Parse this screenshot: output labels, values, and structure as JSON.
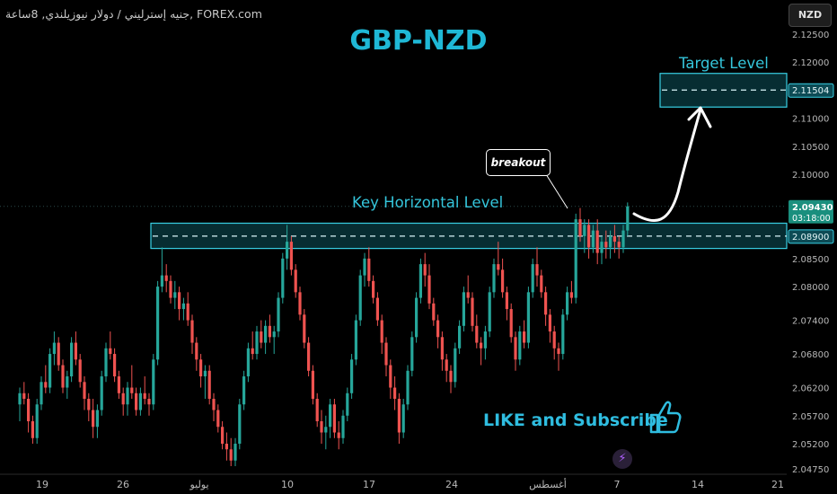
{
  "header": {
    "source": "جنيه إسترليني / دولار نيوزيلندي, 8ساعة, FOREX.com",
    "title": "GBP-NZD",
    "symbol_button": "NZD"
  },
  "annotations": {
    "breakout": "breakout",
    "key_level": "Key Horizontal Level",
    "target_level": "Target Level",
    "like": "LIKE and Subscribe"
  },
  "colors": {
    "background": "#000000",
    "bull": "#26a69a",
    "bear": "#ef5350",
    "zone": "#1aa0b4",
    "accent": "#1fb8d6"
  },
  "icons": [
    "thumbs-up-icon",
    "lightning-icon"
  ],
  "chart_data": {
    "type": "candlestick",
    "y_axis_ticks": [
      "2.12500",
      "2.12000",
      "2.11000",
      "2.10500",
      "2.10000",
      "2.08500",
      "2.08000",
      "2.07400",
      "2.06800",
      "2.06200",
      "2.05700",
      "2.05200",
      "2.04750"
    ],
    "x_axis_ticks": [
      "19",
      "26",
      "يوليو",
      "10",
      "17",
      "24",
      "أغسطس",
      "7",
      "14",
      "21"
    ],
    "ylim": [
      2.0475,
      2.1275
    ],
    "price_labels": [
      {
        "value": "2.11504",
        "style": "zone"
      },
      {
        "value": "2.09430",
        "sub": "03:18:00",
        "style": "bull"
      },
      {
        "value": "2.08900",
        "style": "zone"
      }
    ],
    "zones": [
      {
        "name": "Key Horizontal Level",
        "top": 2.0913,
        "bottom": 2.0868,
        "mid": 2.089
      },
      {
        "name": "Target Level",
        "top": 2.118,
        "bottom": 2.112,
        "mid": 2.11504
      }
    ],
    "current_price": 2.0943,
    "candles": [
      [
        2.059,
        2.062,
        2.056,
        2.061
      ],
      [
        2.061,
        2.063,
        2.059,
        2.06
      ],
      [
        2.06,
        2.061,
        2.054,
        2.056
      ],
      [
        2.056,
        2.057,
        2.052,
        2.053
      ],
      [
        2.053,
        2.06,
        2.052,
        2.059
      ],
      [
        2.059,
        2.064,
        2.058,
        2.063
      ],
      [
        2.063,
        2.066,
        2.061,
        2.062
      ],
      [
        2.062,
        2.069,
        2.061,
        2.068
      ],
      [
        2.068,
        2.072,
        2.066,
        2.07
      ],
      [
        2.07,
        2.071,
        2.065,
        2.066
      ],
      [
        2.066,
        2.067,
        2.061,
        2.062
      ],
      [
        2.062,
        2.065,
        2.06,
        2.064
      ],
      [
        2.064,
        2.071,
        2.063,
        2.07
      ],
      [
        2.07,
        2.072,
        2.066,
        2.067
      ],
      [
        2.067,
        2.068,
        2.062,
        2.063
      ],
      [
        2.063,
        2.064,
        2.058,
        2.06
      ],
      [
        2.06,
        2.061,
        2.056,
        2.058
      ],
      [
        2.058,
        2.06,
        2.053,
        2.055
      ],
      [
        2.055,
        2.059,
        2.053,
        2.058
      ],
      [
        2.058,
        2.065,
        2.057,
        2.064
      ],
      [
        2.064,
        2.07,
        2.063,
        2.069
      ],
      [
        2.069,
        2.072,
        2.067,
        2.068
      ],
      [
        2.068,
        2.069,
        2.063,
        2.064
      ],
      [
        2.064,
        2.065,
        2.06,
        2.061
      ],
      [
        2.061,
        2.062,
        2.057,
        2.059
      ],
      [
        2.059,
        2.063,
        2.057,
        2.062
      ],
      [
        2.062,
        2.066,
        2.06,
        2.061
      ],
      [
        2.061,
        2.062,
        2.057,
        2.058
      ],
      [
        2.058,
        2.062,
        2.057,
        2.061
      ],
      [
        2.061,
        2.064,
        2.059,
        2.06
      ],
      [
        2.06,
        2.061,
        2.057,
        2.059
      ],
      [
        2.059,
        2.068,
        2.058,
        2.067
      ],
      [
        2.067,
        2.081,
        2.066,
        2.08
      ],
      [
        2.08,
        2.087,
        2.079,
        2.082
      ],
      [
        2.082,
        2.084,
        2.079,
        2.081
      ],
      [
        2.081,
        2.082,
        2.077,
        2.078
      ],
      [
        2.078,
        2.081,
        2.076,
        2.079
      ],
      [
        2.079,
        2.08,
        2.074,
        2.076
      ],
      [
        2.076,
        2.078,
        2.074,
        2.077
      ],
      [
        2.077,
        2.079,
        2.073,
        2.074
      ],
      [
        2.074,
        2.075,
        2.068,
        2.07
      ],
      [
        2.07,
        2.071,
        2.065,
        2.067
      ],
      [
        2.067,
        2.068,
        2.062,
        2.064
      ],
      [
        2.064,
        2.066,
        2.06,
        2.065
      ],
      [
        2.065,
        2.066,
        2.059,
        2.06
      ],
      [
        2.06,
        2.061,
        2.056,
        2.058
      ],
      [
        2.058,
        2.059,
        2.054,
        2.055
      ],
      [
        2.055,
        2.056,
        2.051,
        2.052
      ],
      [
        2.052,
        2.054,
        2.049,
        2.051
      ],
      [
        2.051,
        2.053,
        2.048,
        2.049
      ],
      [
        2.049,
        2.053,
        2.048,
        2.052
      ],
      [
        2.052,
        2.06,
        2.051,
        2.059
      ],
      [
        2.059,
        2.065,
        2.058,
        2.064
      ],
      [
        2.064,
        2.07,
        2.063,
        2.069
      ],
      [
        2.069,
        2.072,
        2.067,
        2.068
      ],
      [
        2.068,
        2.073,
        2.067,
        2.072
      ],
      [
        2.072,
        2.074,
        2.069,
        2.07
      ],
      [
        2.07,
        2.074,
        2.068,
        2.073
      ],
      [
        2.073,
        2.075,
        2.07,
        2.071
      ],
      [
        2.071,
        2.073,
        2.068,
        2.072
      ],
      [
        2.072,
        2.079,
        2.071,
        2.078
      ],
      [
        2.078,
        2.086,
        2.077,
        2.085
      ],
      [
        2.085,
        2.091,
        2.083,
        2.088
      ],
      [
        2.088,
        2.089,
        2.082,
        2.083
      ],
      [
        2.083,
        2.084,
        2.078,
        2.079
      ],
      [
        2.079,
        2.08,
        2.074,
        2.075
      ],
      [
        2.075,
        2.076,
        2.069,
        2.07
      ],
      [
        2.07,
        2.071,
        2.064,
        2.065
      ],
      [
        2.065,
        2.066,
        2.059,
        2.06
      ],
      [
        2.06,
        2.061,
        2.055,
        2.056
      ],
      [
        2.056,
        2.058,
        2.052,
        2.054
      ],
      [
        2.054,
        2.057,
        2.051,
        2.055
      ],
      [
        2.055,
        2.06,
        2.053,
        2.059
      ],
      [
        2.059,
        2.06,
        2.053,
        2.054
      ],
      [
        2.054,
        2.056,
        2.051,
        2.053
      ],
      [
        2.053,
        2.058,
        2.052,
        2.057
      ],
      [
        2.057,
        2.062,
        2.056,
        2.061
      ],
      [
        2.061,
        2.068,
        2.06,
        2.067
      ],
      [
        2.067,
        2.075,
        2.066,
        2.074
      ],
      [
        2.074,
        2.083,
        2.073,
        2.082
      ],
      [
        2.082,
        2.086,
        2.08,
        2.085
      ],
      [
        2.085,
        2.087,
        2.08,
        2.081
      ],
      [
        2.081,
        2.082,
        2.077,
        2.078
      ],
      [
        2.078,
        2.079,
        2.073,
        2.074
      ],
      [
        2.074,
        2.075,
        2.068,
        2.07
      ],
      [
        2.07,
        2.071,
        2.064,
        2.066
      ],
      [
        2.066,
        2.067,
        2.06,
        2.062
      ],
      [
        2.062,
        2.064,
        2.058,
        2.06
      ],
      [
        2.06,
        2.061,
        2.052,
        2.054
      ],
      [
        2.054,
        2.06,
        2.053,
        2.059
      ],
      [
        2.059,
        2.066,
        2.058,
        2.065
      ],
      [
        2.065,
        2.072,
        2.064,
        2.071
      ],
      [
        2.071,
        2.079,
        2.07,
        2.078
      ],
      [
        2.078,
        2.085,
        2.077,
        2.084
      ],
      [
        2.084,
        2.086,
        2.08,
        2.082
      ],
      [
        2.082,
        2.084,
        2.076,
        2.077
      ],
      [
        2.077,
        2.078,
        2.073,
        2.074
      ],
      [
        2.074,
        2.075,
        2.069,
        2.071
      ],
      [
        2.071,
        2.072,
        2.065,
        2.067
      ],
      [
        2.067,
        2.068,
        2.063,
        2.065
      ],
      [
        2.065,
        2.066,
        2.061,
        2.063
      ],
      [
        2.063,
        2.07,
        2.062,
        2.069
      ],
      [
        2.069,
        2.074,
        2.068,
        2.073
      ],
      [
        2.073,
        2.08,
        2.072,
        2.079
      ],
      [
        2.079,
        2.082,
        2.077,
        2.078
      ],
      [
        2.078,
        2.079,
        2.072,
        2.073
      ],
      [
        2.073,
        2.075,
        2.069,
        2.07
      ],
      [
        2.07,
        2.071,
        2.066,
        2.069
      ],
      [
        2.069,
        2.073,
        2.067,
        2.072
      ],
      [
        2.072,
        2.08,
        2.071,
        2.079
      ],
      [
        2.079,
        2.085,
        2.078,
        2.084
      ],
      [
        2.084,
        2.088,
        2.082,
        2.083
      ],
      [
        2.083,
        2.085,
        2.078,
        2.079
      ],
      [
        2.079,
        2.08,
        2.074,
        2.076
      ],
      [
        2.076,
        2.077,
        2.07,
        2.071
      ],
      [
        2.071,
        2.072,
        2.065,
        2.067
      ],
      [
        2.067,
        2.073,
        2.066,
        2.072
      ],
      [
        2.072,
        2.074,
        2.069,
        2.07
      ],
      [
        2.07,
        2.08,
        2.069,
        2.079
      ],
      [
        2.079,
        2.085,
        2.078,
        2.084
      ],
      [
        2.084,
        2.087,
        2.08,
        2.082
      ],
      [
        2.082,
        2.083,
        2.078,
        2.079
      ],
      [
        2.079,
        2.08,
        2.073,
        2.075
      ],
      [
        2.075,
        2.076,
        2.07,
        2.072
      ],
      [
        2.072,
        2.073,
        2.067,
        2.069
      ],
      [
        2.069,
        2.07,
        2.065,
        2.068
      ],
      [
        2.068,
        2.076,
        2.067,
        2.075
      ],
      [
        2.075,
        2.08,
        2.074,
        2.079
      ],
      [
        2.079,
        2.081,
        2.077,
        2.078
      ],
      [
        2.078,
        2.093,
        2.077,
        2.092
      ],
      [
        2.092,
        2.094,
        2.088,
        2.089
      ],
      [
        2.089,
        2.092,
        2.086,
        2.091
      ],
      [
        2.091,
        2.092,
        2.085,
        2.087
      ],
      [
        2.087,
        2.091,
        2.086,
        2.09
      ],
      [
        2.09,
        2.092,
        2.084,
        2.086
      ],
      [
        2.086,
        2.089,
        2.084,
        2.088
      ],
      [
        2.088,
        2.09,
        2.085,
        2.087
      ],
      [
        2.087,
        2.09,
        2.085,
        2.089
      ],
      [
        2.089,
        2.091,
        2.086,
        2.088
      ],
      [
        2.088,
        2.089,
        2.085,
        2.087
      ],
      [
        2.087,
        2.091,
        2.086,
        2.09
      ],
      [
        2.09,
        2.095,
        2.089,
        2.0943
      ]
    ]
  }
}
